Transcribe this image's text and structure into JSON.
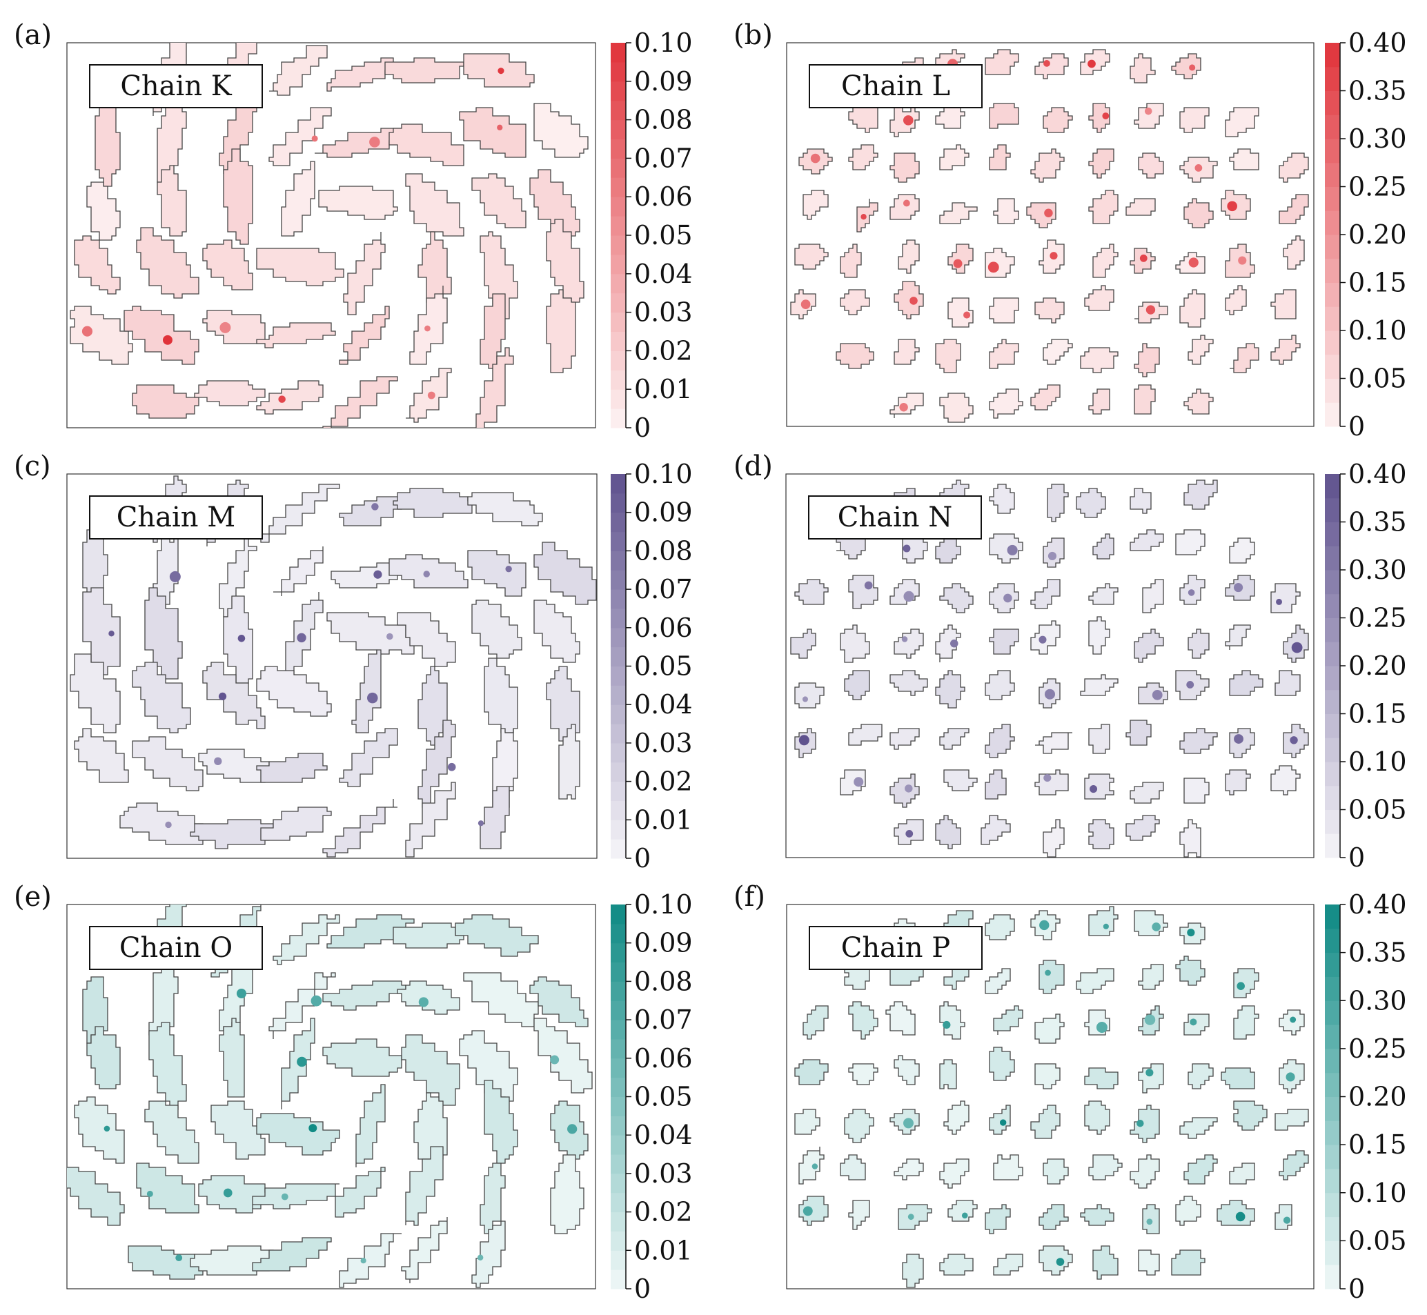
{
  "chart_data": [
    {
      "type": "heatmap",
      "panel_label": "(a)",
      "legend": "Chain K",
      "colormap": "#e0333a",
      "colorbar": {
        "max": 0.1,
        "ticks": [
          "0",
          "0.01",
          "0.02",
          "0.03",
          "0.04",
          "0.05",
          "0.06",
          "0.07",
          "0.08",
          "0.09",
          "0.10"
        ]
      }
    },
    {
      "type": "heatmap",
      "panel_label": "(b)",
      "legend": "Chain L",
      "colormap": "#e0333a",
      "colorbar": {
        "max": 0.4,
        "ticks": [
          "0",
          "0.05",
          "0.10",
          "0.15",
          "0.20",
          "0.25",
          "0.30",
          "0.35",
          "0.40"
        ]
      }
    },
    {
      "type": "heatmap",
      "panel_label": "(c)",
      "legend": "Chain M",
      "colormap": "#5f528e",
      "colorbar": {
        "max": 0.1,
        "ticks": [
          "0",
          "0.01",
          "0.02",
          "0.03",
          "0.04",
          "0.05",
          "0.06",
          "0.07",
          "0.08",
          "0.09",
          "0.10"
        ]
      }
    },
    {
      "type": "heatmap",
      "panel_label": "(d)",
      "legend": "Chain N",
      "colormap": "#5f528e",
      "colorbar": {
        "max": 0.4,
        "ticks": [
          "0",
          "0.05",
          "0.10",
          "0.15",
          "0.20",
          "0.25",
          "0.30",
          "0.35",
          "0.40"
        ]
      }
    },
    {
      "type": "heatmap",
      "panel_label": "(e)",
      "legend": "Chain O",
      "colormap": "#0f8a84",
      "colorbar": {
        "max": 0.1,
        "ticks": [
          "0",
          "0.01",
          "0.02",
          "0.03",
          "0.04",
          "0.05",
          "0.06",
          "0.07",
          "0.08",
          "0.09",
          "0.10"
        ]
      }
    },
    {
      "type": "heatmap",
      "panel_label": "(f)",
      "legend": "Chain P",
      "colormap": "#0f8a84",
      "colorbar": {
        "max": 0.4,
        "ticks": [
          "0",
          "0.05",
          "0.10",
          "0.15",
          "0.20",
          "0.25",
          "0.30",
          "0.35",
          "0.40"
        ]
      }
    }
  ]
}
